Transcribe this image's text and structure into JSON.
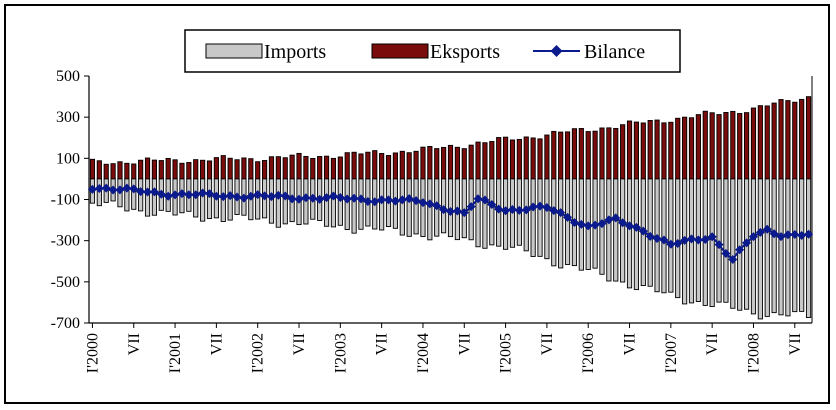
{
  "chart_data": {
    "type": "bar",
    "title": "",
    "xlabel": "",
    "ylabel": "",
    "ylim": [
      -700,
      500
    ],
    "yticks": [
      500,
      300,
      100,
      -100,
      -300,
      -500,
      -700
    ],
    "grid": false,
    "legend_placement": "top-center",
    "x_tick_labels": [
      "I'2000",
      "VII",
      "I'2001",
      "VII",
      "I'2002",
      "VII",
      "I'2003",
      "VII",
      "I'2004",
      "VII",
      "I'2005",
      "VII",
      "I'2006",
      "VII",
      "I'2007",
      "VII",
      "I'2008",
      "VII"
    ],
    "period": {
      "first_month": "I'2000",
      "months": 105
    },
    "anchors": {
      "exports": [
        [
          0,
          80
        ],
        [
          12,
          90
        ],
        [
          24,
          100
        ],
        [
          36,
          115
        ],
        [
          48,
          140
        ],
        [
          60,
          190
        ],
        [
          72,
          240
        ],
        [
          84,
          290
        ],
        [
          96,
          340
        ],
        [
          104,
          400
        ]
      ],
      "imports": [
        [
          0,
          -120
        ],
        [
          12,
          -175
        ],
        [
          24,
          -200
        ],
        [
          36,
          -230
        ],
        [
          48,
          -270
        ],
        [
          60,
          -330
        ],
        [
          72,
          -450
        ],
        [
          84,
          -570
        ],
        [
          96,
          -650
        ],
        [
          104,
          -670
        ]
      ],
      "balance": [
        [
          0,
          -40
        ],
        [
          12,
          -75
        ],
        [
          24,
          -85
        ],
        [
          36,
          -95
        ],
        [
          48,
          -110
        ],
        [
          54,
          -170
        ],
        [
          56,
          -100
        ],
        [
          60,
          -150
        ],
        [
          66,
          -140
        ],
        [
          72,
          -230
        ],
        [
          76,
          -200
        ],
        [
          80,
          -250
        ],
        [
          84,
          -320
        ],
        [
          90,
          -280
        ],
        [
          93,
          -390
        ],
        [
          96,
          -280
        ],
        [
          98,
          -250
        ],
        [
          100,
          -270
        ],
        [
          104,
          -270
        ]
      ]
    },
    "series": [
      {
        "name": "Imports",
        "color": "#c8c8c8"
      },
      {
        "name": "Eksports",
        "color": "#7a0c0c"
      },
      {
        "name": "Bilance",
        "color": "#0b1a8c",
        "marker": "diamond"
      }
    ]
  }
}
